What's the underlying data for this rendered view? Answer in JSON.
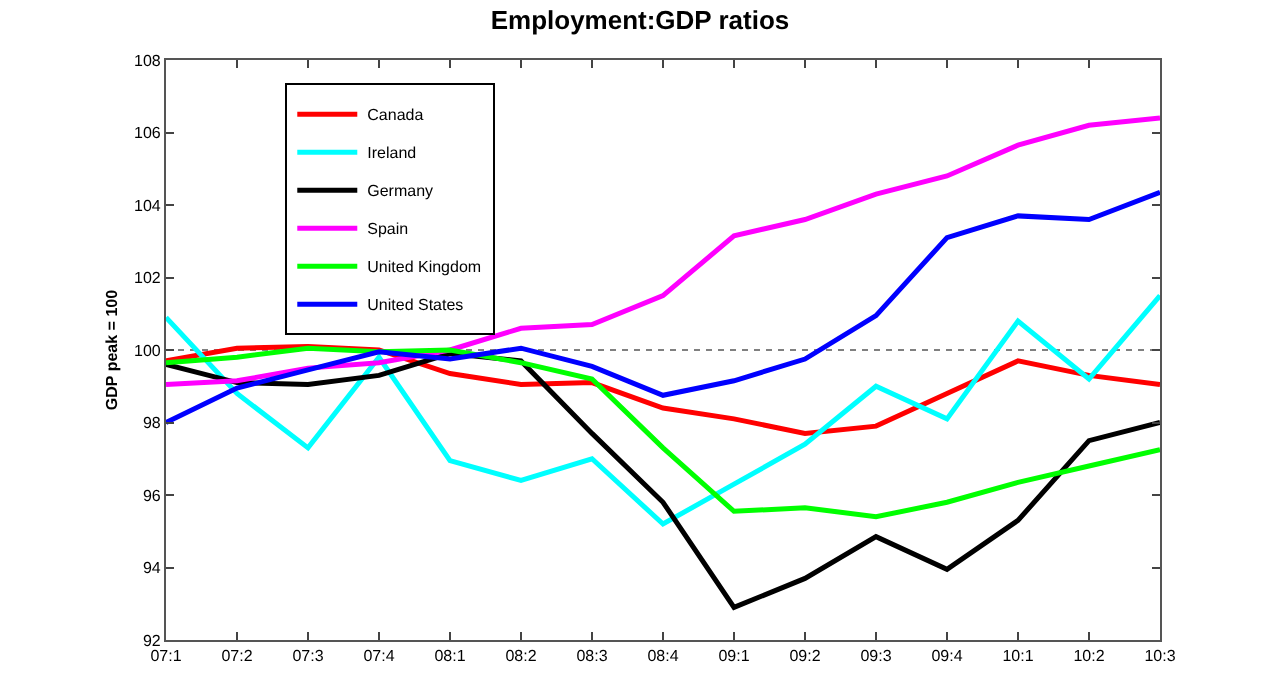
{
  "chart_data": {
    "type": "line",
    "title": "Employment:GDP ratios",
    "ylabel": "GDP peak = 100",
    "categories": [
      "07:1",
      "07:2",
      "07:3",
      "07:4",
      "08:1",
      "08:2",
      "08:3",
      "08:4",
      "09:1",
      "09:2",
      "09:3",
      "09:4",
      "10:1",
      "10:2",
      "10:3"
    ],
    "series": [
      {
        "name": "Canada",
        "color": "#ff0000",
        "values": [
          99.7,
          100.05,
          100.1,
          100.0,
          99.35,
          99.05,
          99.1,
          98.4,
          98.1,
          97.7,
          97.9,
          98.8,
          99.7,
          99.3,
          99.05
        ]
      },
      {
        "name": "Ireland",
        "color": "#00ffff",
        "values": [
          100.9,
          98.8,
          97.3,
          99.8,
          96.95,
          96.4,
          97.0,
          95.2,
          96.3,
          97.4,
          99.0,
          98.1,
          100.8,
          99.2,
          101.5
        ]
      },
      {
        "name": "Germany",
        "color": "#000000",
        "values": [
          99.6,
          99.1,
          99.05,
          99.3,
          99.9,
          99.7,
          97.7,
          95.8,
          92.9,
          93.7,
          94.85,
          93.95,
          95.3,
          97.5,
          98.0
        ]
      },
      {
        "name": "Spain",
        "color": "#ff00ff",
        "values": [
          99.05,
          99.15,
          99.5,
          99.65,
          100.0,
          100.6,
          100.7,
          101.5,
          103.15,
          103.6,
          104.3,
          104.8,
          105.65,
          106.2,
          106.4
        ]
      },
      {
        "name": "United Kingdom",
        "color": "#00ff00",
        "values": [
          99.65,
          99.8,
          100.05,
          99.95,
          100.0,
          99.65,
          99.2,
          97.3,
          95.55,
          95.65,
          95.4,
          95.8,
          96.35,
          96.8,
          97.25
        ]
      },
      {
        "name": "United States",
        "color": "#0000ff",
        "values": [
          98.0,
          98.95,
          99.45,
          99.95,
          99.75,
          100.05,
          99.55,
          98.75,
          99.15,
          99.75,
          100.95,
          103.1,
          103.7,
          103.6,
          104.35
        ]
      }
    ],
    "ylim": [
      92,
      108
    ],
    "yticks": [
      92,
      94,
      96,
      98,
      100,
      102,
      104,
      106,
      108
    ],
    "ref_lines": [
      {
        "axis": "y",
        "value": 100,
        "color": "#808080",
        "line_style": "dotted"
      }
    ],
    "grid": false,
    "legend": "top left",
    "marker": "none",
    "line_style": "solid"
  }
}
